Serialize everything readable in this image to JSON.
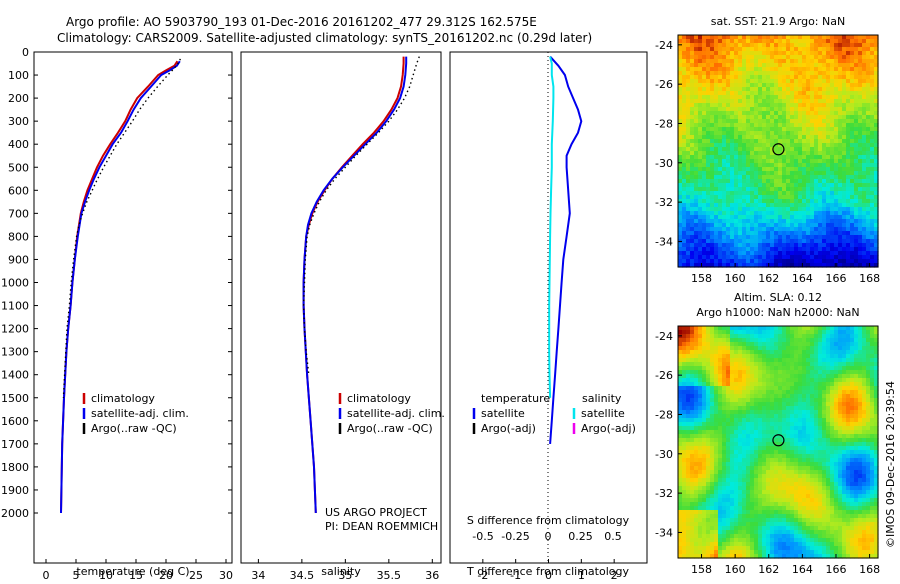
{
  "header": {
    "line1": "Argo profile: AO 5903790_193 01-Dec-2016 20161202_477 29.312S 162.575E",
    "line2": "Climatology: CARS2009. Satellite-adjusted climatology: synTS_20161202.nc (0.29d later)"
  },
  "colors": {
    "climatology": "#cc0000",
    "satellite": "#0000ee",
    "argo": "#000000",
    "salinity_satellite": "#00e5ee",
    "salinity_argo": "#ee00ee"
  },
  "chart_data": [
    {
      "type": "line",
      "panel": "temperature",
      "xlabel": "temperature (deg C)",
      "ylabel": "",
      "xlim": [
        -2,
        31
      ],
      "ylim": [
        2100,
        0
      ],
      "x_ticks": [
        "0",
        "5",
        "10",
        "15",
        "20",
        "25",
        "30"
      ],
      "y_ticks": [
        "0",
        "100",
        "200",
        "300",
        "400",
        "500",
        "600",
        "700",
        "800",
        "900",
        "1000",
        "1100",
        "1200",
        "1300",
        "1400",
        "1500",
        "1600",
        "1700",
        "1800",
        "1900",
        "2000"
      ],
      "legend": [
        "climatology",
        "satellite-adj. clim.",
        "Argo(..raw -QC)"
      ],
      "legend_placement": "lower-right",
      "series": [
        {
          "name": "climatology",
          "x": [
            21.9,
            21.4,
            20.0,
            18.7,
            17.0,
            15.2,
            14.1,
            13.2,
            12.0,
            10.7,
            9.5,
            8.5,
            7.7,
            6.9,
            6.3,
            5.8,
            5.2,
            4.8,
            4.4,
            4.1,
            3.7,
            3.4,
            3.2,
            3.0,
            2.7,
            2.5
          ],
          "y": [
            40,
            60,
            80,
            100,
            150,
            200,
            250,
            300,
            350,
            400,
            450,
            500,
            550,
            600,
            650,
            700,
            800,
            900,
            1000,
            1100,
            1200,
            1300,
            1400,
            1500,
            1700,
            2000
          ]
        },
        {
          "name": "satellite-adj. clim.",
          "x": [
            22.3,
            21.8,
            20.6,
            19.2,
            17.5,
            15.8,
            14.6,
            13.6,
            12.5,
            11.1,
            10.0,
            8.9,
            8.0,
            7.2,
            6.5,
            5.9,
            5.3,
            4.8,
            4.4,
            4.1,
            3.7,
            3.4,
            3.2,
            3.0,
            2.7,
            2.5
          ],
          "y": [
            40,
            60,
            80,
            100,
            150,
            200,
            250,
            300,
            350,
            400,
            450,
            500,
            550,
            600,
            650,
            700,
            800,
            900,
            1000,
            1100,
            1200,
            1300,
            1400,
            1500,
            1700,
            2000
          ]
        },
        {
          "name": "Argo(..raw -QC)",
          "x": [
            22.4,
            22.0,
            21.4,
            20.3,
            18.6,
            17.0,
            15.6,
            14.4,
            13.1,
            11.8,
            10.7,
            9.6,
            8.6,
            7.7,
            6.8,
            6.1,
            5.5,
            5.1,
            4.6,
            4.2,
            3.9,
            3.5,
            3.3,
            3.1,
            2.9
          ],
          "y": [
            30,
            50,
            70,
            100,
            150,
            200,
            250,
            300,
            350,
            400,
            450,
            500,
            550,
            600,
            650,
            700,
            750,
            800,
            900,
            1000,
            1100,
            1200,
            1300,
            1400,
            1500
          ]
        }
      ]
    },
    {
      "type": "line",
      "panel": "salinity",
      "xlabel": "salinity",
      "ylabel": "",
      "xlim": [
        33.8,
        36.1
      ],
      "ylim": [
        2100,
        0
      ],
      "x_ticks": [
        "34",
        "34.5",
        "35",
        "35.5",
        "36"
      ],
      "legend": [
        "climatology",
        "satellite-adj. clim.",
        "Argo(..raw -QC)"
      ],
      "legend_placement": "lower-right",
      "series": [
        {
          "name": "climatology",
          "x": [
            35.67,
            35.67,
            35.66,
            35.64,
            35.6,
            35.53,
            35.44,
            35.33,
            35.2,
            35.08,
            34.96,
            34.85,
            34.76,
            34.68,
            34.62,
            34.58,
            34.55,
            34.53,
            34.52,
            34.52,
            34.53,
            34.56,
            34.6,
            34.64,
            34.66
          ],
          "y": [
            20,
            50,
            100,
            150,
            200,
            250,
            300,
            350,
            400,
            450,
            500,
            550,
            600,
            650,
            700,
            750,
            800,
            900,
            1000,
            1100,
            1200,
            1400,
            1600,
            1800,
            2000
          ]
        },
        {
          "name": "satellite-adj. clim.",
          "x": [
            35.7,
            35.7,
            35.69,
            35.67,
            35.63,
            35.56,
            35.47,
            35.36,
            35.23,
            35.1,
            34.97,
            34.85,
            34.75,
            34.67,
            34.61,
            34.57,
            34.55,
            34.53,
            34.52,
            34.52,
            34.53,
            34.56,
            34.6,
            34.64,
            34.66
          ],
          "y": [
            20,
            50,
            100,
            150,
            200,
            250,
            300,
            350,
            400,
            450,
            500,
            550,
            600,
            650,
            700,
            750,
            800,
            900,
            1000,
            1100,
            1200,
            1400,
            1600,
            1800,
            2000
          ]
        },
        {
          "name": "Argo(..raw -QC)",
          "x": [
            35.85,
            35.82,
            35.78,
            35.74,
            35.68,
            35.6,
            35.5,
            35.38,
            35.25,
            35.12,
            35.0,
            34.88,
            34.78,
            34.7,
            34.64,
            34.59,
            34.56,
            34.54,
            34.53,
            34.52,
            34.53,
            34.55,
            34.58
          ],
          "y": [
            20,
            50,
            100,
            150,
            200,
            250,
            300,
            350,
            400,
            450,
            500,
            550,
            600,
            650,
            700,
            750,
            800,
            900,
            1000,
            1100,
            1200,
            1300,
            1400
          ]
        }
      ],
      "annotations": [
        "US ARGO PROJECT",
        "PI: DEAN ROEMMICH"
      ]
    },
    {
      "type": "line",
      "panel": "difference",
      "xlabel": "T difference from climatology",
      "x2label": "S difference from climatology",
      "xlim": [
        -3,
        3
      ],
      "ylim": [
        2100,
        0
      ],
      "x_ticks": [
        "-2",
        "-1",
        "0",
        "1",
        "2"
      ],
      "x2_ticks": [
        "-0.5",
        "-0.25",
        "0",
        "0.25",
        "0.5"
      ],
      "legend_left_title": "temperature",
      "legend_right_title": "salinity",
      "legend_left": [
        "satellite",
        "Argo(-adj)"
      ],
      "legend_right": [
        "satellite",
        "Argo(-adj)"
      ],
      "series": [
        {
          "name": "temperature satellite",
          "x": [
            0.05,
            0.3,
            0.5,
            0.6,
            0.75,
            0.9,
            1.0,
            0.9,
            0.7,
            0.55,
            0.55,
            0.6,
            0.65,
            0.55,
            0.45,
            0.4,
            0.35,
            0.3,
            0.25,
            0.2,
            0.15,
            0.1,
            0.05
          ],
          "y": [
            20,
            60,
            100,
            150,
            200,
            250,
            300,
            350,
            400,
            450,
            500,
            600,
            700,
            800,
            900,
            1000,
            1100,
            1200,
            1300,
            1400,
            1500,
            1600,
            1700
          ]
        },
        {
          "name": "salinity satellite",
          "x": [
            0.05,
            0.1,
            0.1,
            0.15,
            0.15,
            0.13,
            0.1,
            0.1,
            0.08,
            0.06,
            0.05,
            0.04,
            0.03,
            0.02,
            0.02,
            0.02,
            0.03,
            0.05
          ],
          "y": [
            20,
            50,
            100,
            150,
            200,
            300,
            400,
            500,
            600,
            700,
            800,
            900,
            1000,
            1100,
            1200,
            1300,
            1400,
            1500
          ]
        }
      ]
    },
    {
      "type": "heatmap",
      "panel": "sst-map",
      "title": "sat. SST: 21.9 Argo: NaN",
      "x_ticks": [
        "158",
        "160",
        "162",
        "164",
        "166",
        "168"
      ],
      "y_ticks": [
        "-24",
        "-26",
        "-28",
        "-30",
        "-32",
        "-34"
      ],
      "xlim": [
        156.6,
        168.5
      ],
      "ylim": [
        -35.3,
        -23.5
      ],
      "marker": {
        "lon": 162.575,
        "lat": -29.312
      }
    },
    {
      "type": "heatmap",
      "panel": "sla-map",
      "title1": "Altim. SLA: 0.12",
      "title2": "Argo h1000: NaN h2000: NaN",
      "x_ticks": [
        "158",
        "160",
        "162",
        "164",
        "166",
        "168"
      ],
      "y_ticks": [
        "-24",
        "-26",
        "-28",
        "-30",
        "-32",
        "-34"
      ],
      "xlim": [
        156.6,
        168.5
      ],
      "ylim": [
        -35.3,
        -23.5
      ],
      "marker": {
        "lon": 162.575,
        "lat": -29.312
      }
    }
  ],
  "footer": {
    "timestamp": "©IMOS 09-Dec-2016 20:39:54"
  }
}
